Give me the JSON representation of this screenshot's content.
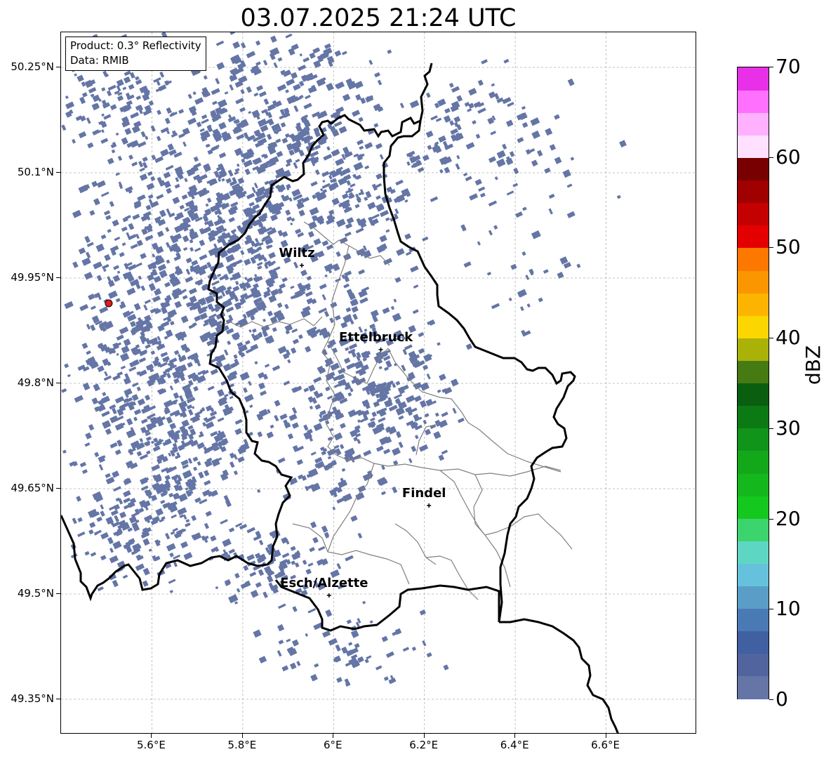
{
  "title": "03.07.2025 21:24 UTC",
  "info": {
    "product": "Product: 0.3° Reflectivity",
    "data_source": "Data: RMIB"
  },
  "map": {
    "lon_range": [
      5.4,
      6.8
    ],
    "lat_range": [
      49.3,
      50.3
    ],
    "lat_ticks": [
      {
        "value": 50.25,
        "label": "50.25°N"
      },
      {
        "value": 50.1,
        "label": "50.1°N"
      },
      {
        "value": 49.95,
        "label": "49.95°N"
      },
      {
        "value": 49.8,
        "label": "49.8°N"
      },
      {
        "value": 49.65,
        "label": "49.65°N"
      },
      {
        "value": 49.5,
        "label": "49.5°N"
      },
      {
        "value": 49.35,
        "label": "49.35°N"
      }
    ],
    "lon_ticks": [
      {
        "value": 5.6,
        "label": "5.6°E"
      },
      {
        "value": 5.8,
        "label": "5.8°E"
      },
      {
        "value": 6.0,
        "label": "6°E"
      },
      {
        "value": 6.2,
        "label": "6.2°E"
      },
      {
        "value": 6.4,
        "label": "6.4°E"
      },
      {
        "value": 6.6,
        "label": "6.6°E"
      }
    ],
    "cities": [
      {
        "name": "Wiltz",
        "lon": 5.93,
        "lat": 49.968
      },
      {
        "name": "Ettelbruck",
        "lon": 6.104,
        "lat": 49.848
      },
      {
        "name": "Findel",
        "lon": 6.21,
        "lat": 49.626
      },
      {
        "name": "Esch/Alzette",
        "lon": 5.99,
        "lat": 49.498
      }
    ],
    "radar_site": {
      "lon": 5.505,
      "lat": 49.914,
      "color": "#e41a1c"
    },
    "echo_color": "#6475a6"
  },
  "colorbar": {
    "label": "dBZ",
    "min": 0,
    "max": 70,
    "ticks": [
      {
        "value": 0,
        "label": "0"
      },
      {
        "value": 10,
        "label": "10"
      },
      {
        "value": 20,
        "label": "20"
      },
      {
        "value": 30,
        "label": "30"
      },
      {
        "value": 40,
        "label": "40"
      },
      {
        "value": 50,
        "label": "50"
      },
      {
        "value": 60,
        "label": "60"
      },
      {
        "value": 70,
        "label": "70"
      }
    ],
    "colors": [
      "#6475a6",
      "#52649e",
      "#4060a2",
      "#4a7ab4",
      "#5a9ec8",
      "#66c2dc",
      "#5ed6c4",
      "#3cd46c",
      "#14c81e",
      "#14b81c",
      "#12a81a",
      "#10941a",
      "#0c7a14",
      "#0a5e10",
      "#467a12",
      "#aab208",
      "#fcd600",
      "#fcb400",
      "#fc9600",
      "#fc7800",
      "#e40000",
      "#c40000",
      "#a00000",
      "#780000",
      "#ffe0ff",
      "#ffb0ff",
      "#ff70ff",
      "#e830e8"
    ]
  }
}
